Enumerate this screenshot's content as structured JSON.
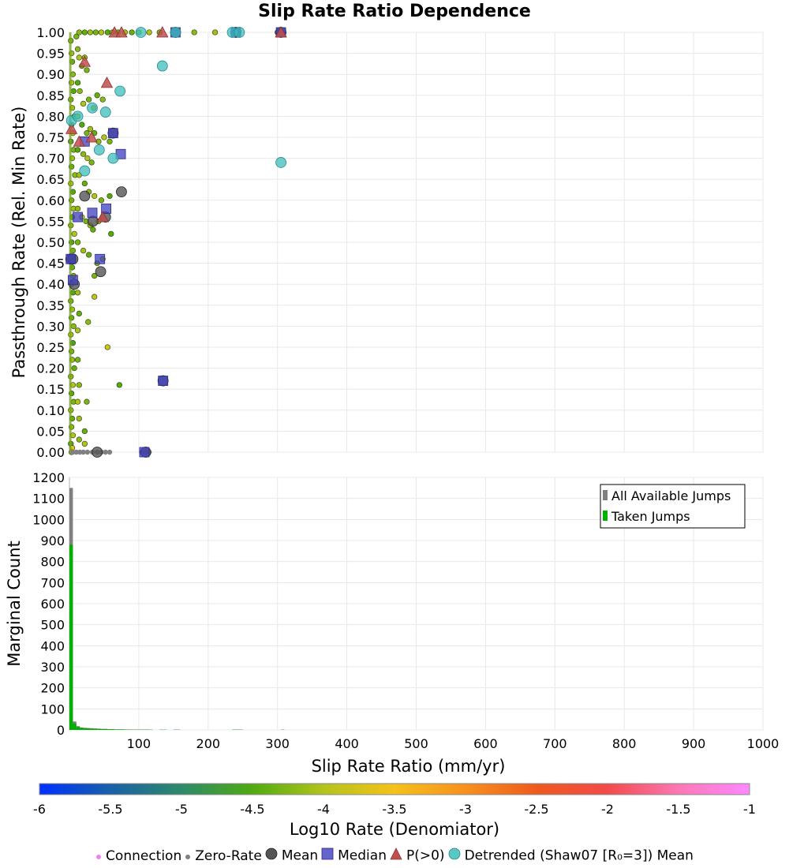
{
  "title": "Slip Rate Ratio Dependence",
  "colors": {
    "zero_rate": "#808080",
    "mean": "#555555",
    "median": "#3d3dbf",
    "pgt0": "#c0504d",
    "detrended": "#3dbdbd",
    "connection": "#ee82ee",
    "hist_all": "#808080",
    "hist_taken": "#00b000",
    "grid": "#e8e8e8",
    "axes_border": "#b0b0b0"
  },
  "chart_data": [
    {
      "type": "scatter",
      "xlabel": "",
      "ylabel": "Passthrough Rate (Rel. Min Rate)",
      "xlim": [
        0,
        1000
      ],
      "ylim": [
        0.0,
        1.0
      ],
      "xticks": [
        100,
        200,
        300,
        400,
        500,
        600,
        700,
        800,
        900,
        1000
      ],
      "yticks": [
        "0.00",
        "0.05",
        "0.10",
        "0.15",
        "0.20",
        "0.25",
        "0.30",
        "0.35",
        "0.40",
        "0.45",
        "0.50",
        "0.55",
        "0.60",
        "0.65",
        "0.70",
        "0.75",
        "0.80",
        "0.85",
        "0.90",
        "0.95",
        "1.00"
      ],
      "connection_points": [
        [
          2,
          0.98,
          -4.3
        ],
        [
          3,
          0.95,
          -4.1
        ],
        [
          4,
          0.93,
          -4.4
        ],
        [
          5,
          0.9,
          -4.2
        ],
        [
          3,
          0.88,
          -4.0
        ],
        [
          6,
          0.86,
          -4.5
        ],
        [
          2,
          0.84,
          -4.3
        ],
        [
          4,
          0.82,
          -4.1
        ],
        [
          7,
          0.8,
          -4.4
        ],
        [
          3,
          0.78,
          -4.2
        ],
        [
          5,
          0.76,
          -4.0
        ],
        [
          2,
          0.74,
          -4.6
        ],
        [
          6,
          0.72,
          -4.3
        ],
        [
          4,
          0.7,
          -4.1
        ],
        [
          3,
          0.68,
          -4.4
        ],
        [
          8,
          0.66,
          -4.2
        ],
        [
          2,
          0.64,
          -4.0
        ],
        [
          5,
          0.62,
          -4.5
        ],
        [
          3,
          0.6,
          -4.3
        ],
        [
          6,
          0.58,
          -4.1
        ],
        [
          4,
          0.56,
          -4.4
        ],
        [
          2,
          0.54,
          -4.2
        ],
        [
          7,
          0.52,
          -4.0
        ],
        [
          3,
          0.5,
          -4.6
        ],
        [
          5,
          0.48,
          -4.3
        ],
        [
          2,
          0.46,
          -4.1
        ],
        [
          4,
          0.44,
          -4.4
        ],
        [
          6,
          0.42,
          -4.2
        ],
        [
          3,
          0.4,
          -4.0
        ],
        [
          5,
          0.38,
          -4.5
        ],
        [
          2,
          0.36,
          -4.3
        ],
        [
          4,
          0.34,
          -4.1
        ],
        [
          3,
          0.32,
          -4.4
        ],
        [
          6,
          0.3,
          -4.2
        ],
        [
          2,
          0.28,
          -4.0
        ],
        [
          5,
          0.26,
          -4.6
        ],
        [
          3,
          0.24,
          -4.3
        ],
        [
          4,
          0.22,
          -4.1
        ],
        [
          7,
          0.2,
          -4.4
        ],
        [
          2,
          0.18,
          -4.2
        ],
        [
          5,
          0.16,
          -4.0
        ],
        [
          3,
          0.14,
          -4.5
        ],
        [
          6,
          0.12,
          -4.3
        ],
        [
          2,
          0.1,
          -4.1
        ],
        [
          4,
          0.08,
          -4.4
        ],
        [
          3,
          0.06,
          -4.2
        ],
        [
          5,
          0.04,
          -4.0
        ],
        [
          2,
          0.02,
          -4.6
        ],
        [
          4,
          0.01,
          -3.6
        ],
        [
          3,
          0.0,
          -4.3
        ],
        [
          12,
          0.96,
          -4.2
        ],
        [
          14,
          0.94,
          -4.0
        ],
        [
          18,
          0.92,
          -4.4
        ],
        [
          22,
          0.94,
          -4.1
        ],
        [
          25,
          0.91,
          -4.3
        ],
        [
          12,
          0.88,
          -4.5
        ],
        [
          15,
          0.86,
          -4.2
        ],
        [
          20,
          0.83,
          -4.0
        ],
        [
          28,
          0.84,
          -4.3
        ],
        [
          35,
          0.82,
          -4.1
        ],
        [
          40,
          0.85,
          -4.4
        ],
        [
          48,
          0.84,
          -4.2
        ],
        [
          12,
          0.8,
          -4.0
        ],
        [
          18,
          0.78,
          -4.5
        ],
        [
          25,
          0.76,
          -4.3
        ],
        [
          30,
          0.77,
          -4.1
        ],
        [
          36,
          0.76,
          -4.4
        ],
        [
          42,
          0.74,
          -4.2
        ],
        [
          50,
          0.75,
          -4.0
        ],
        [
          58,
          0.74,
          -4.3
        ],
        [
          12,
          0.72,
          -4.5
        ],
        [
          20,
          0.71,
          -4.2
        ],
        [
          26,
          0.7,
          -4.0
        ],
        [
          32,
          0.69,
          -4.3
        ],
        [
          14,
          0.66,
          -4.1
        ],
        [
          22,
          0.64,
          -4.4
        ],
        [
          28,
          0.62,
          -4.2
        ],
        [
          36,
          0.61,
          -4.0
        ],
        [
          46,
          0.6,
          -4.3
        ],
        [
          58,
          0.61,
          -4.5
        ],
        [
          12,
          0.58,
          -4.2
        ],
        [
          18,
          0.56,
          -4.0
        ],
        [
          24,
          0.55,
          -4.3
        ],
        [
          30,
          0.54,
          -4.1
        ],
        [
          34,
          0.53,
          -4.4
        ],
        [
          42,
          0.55,
          -4.2
        ],
        [
          48,
          0.56,
          -4.0
        ],
        [
          60,
          0.52,
          -4.5
        ],
        [
          12,
          0.5,
          -4.3
        ],
        [
          20,
          0.48,
          -4.1
        ],
        [
          28,
          0.47,
          -4.4
        ],
        [
          40,
          0.45,
          -4.2
        ],
        [
          48,
          0.46,
          -4.0
        ],
        [
          36,
          0.42,
          -4.3
        ],
        [
          12,
          0.38,
          -4.1
        ],
        [
          36,
          0.37,
          -3.9
        ],
        [
          14,
          0.33,
          -4.4
        ],
        [
          27,
          0.31,
          -4.2
        ],
        [
          12,
          0.29,
          -4.0
        ],
        [
          55,
          0.25,
          -3.8
        ],
        [
          12,
          0.22,
          -4.3
        ],
        [
          72,
          0.16,
          -4.5
        ],
        [
          14,
          0.16,
          -4.2
        ],
        [
          12,
          0.12,
          -4.0
        ],
        [
          25,
          0.12,
          -4.3
        ],
        [
          14,
          0.08,
          -4.1
        ],
        [
          22,
          0.05,
          -4.4
        ],
        [
          14,
          0.03,
          -4.2
        ],
        [
          22,
          0.02,
          -4.0
        ],
        [
          10,
          0.99,
          -4.3
        ],
        [
          14,
          1.0,
          -4.2
        ],
        [
          22,
          1.0,
          -4.4
        ],
        [
          30,
          1.0,
          -4.1
        ],
        [
          38,
          1.0,
          -4.3
        ],
        [
          46,
          1.0,
          -4.0
        ],
        [
          55,
          1.0,
          -4.5
        ],
        [
          62,
          1.0,
          -4.2
        ],
        [
          70,
          1.0,
          -4.3
        ],
        [
          80,
          1.0,
          -4.1
        ],
        [
          90,
          1.0,
          -4.4
        ],
        [
          100,
          1.0,
          -4.2
        ],
        [
          115,
          1.0,
          -4.0
        ],
        [
          130,
          1.0,
          -4.3
        ],
        [
          150,
          1.0,
          -4.5
        ],
        [
          180,
          1.0,
          -4.2
        ],
        [
          210,
          1.0,
          -4.1
        ],
        [
          240,
          1.0,
          -4.3
        ],
        [
          300,
          1.0,
          -4.4
        ]
      ],
      "zero_rate_points": [
        [
          5,
          0.0
        ],
        [
          10,
          0.0
        ],
        [
          15,
          0.0
        ],
        [
          20,
          0.0
        ],
        [
          26,
          0.0
        ],
        [
          33,
          0.0
        ],
        [
          40,
          0.0
        ],
        [
          46,
          0.0
        ],
        [
          52,
          0.0
        ],
        [
          58,
          0.0
        ],
        [
          104,
          0.0
        ],
        [
          110,
          0.0
        ],
        [
          115,
          0.0
        ]
      ],
      "mean_points": [
        [
          2,
          0.46
        ],
        [
          5,
          0.46
        ],
        [
          7,
          0.4
        ],
        [
          22,
          0.61
        ],
        [
          34,
          0.55
        ],
        [
          40,
          0.0
        ],
        [
          45,
          0.43
        ],
        [
          52,
          0.56
        ],
        [
          75,
          0.62
        ],
        [
          63,
          0.76
        ],
        [
          135,
          0.17
        ],
        [
          110,
          0.0
        ],
        [
          153,
          1.0
        ],
        [
          240,
          1.0
        ],
        [
          305,
          1.0
        ]
      ],
      "median_points": [
        [
          2,
          0.46
        ],
        [
          5,
          0.41
        ],
        [
          12,
          0.56
        ],
        [
          22,
          0.74
        ],
        [
          33,
          0.57
        ],
        [
          44,
          0.46
        ],
        [
          53,
          0.58
        ],
        [
          63,
          0.76
        ],
        [
          74,
          0.71
        ],
        [
          135,
          0.17
        ],
        [
          108,
          0.0
        ],
        [
          153,
          1.0
        ],
        [
          240,
          1.0
        ],
        [
          305,
          1.0
        ]
      ],
      "pgt0_points": [
        [
          3,
          0.77
        ],
        [
          14,
          0.74
        ],
        [
          22,
          0.93
        ],
        [
          32,
          0.75
        ],
        [
          48,
          0.56
        ],
        [
          54,
          0.88
        ],
        [
          65,
          1.0
        ],
        [
          75,
          1.0
        ],
        [
          134,
          1.0
        ],
        [
          305,
          1.0
        ]
      ],
      "detrended_points": [
        [
          3,
          0.79
        ],
        [
          12,
          0.8
        ],
        [
          22,
          0.67
        ],
        [
          33,
          0.82
        ],
        [
          43,
          0.72
        ],
        [
          52,
          0.81
        ],
        [
          63,
          0.7
        ],
        [
          73,
          0.86
        ],
        [
          103,
          1.0
        ],
        [
          134,
          0.92
        ],
        [
          153,
          1.0
        ],
        [
          235,
          1.0
        ],
        [
          245,
          1.0
        ],
        [
          305,
          0.69
        ]
      ]
    },
    {
      "type": "bar",
      "xlabel": "Slip Rate Ratio (mm/yr)",
      "ylabel": "Marginal Count",
      "xlim": [
        0,
        1000
      ],
      "ylim": [
        0,
        1200
      ],
      "xticks": [
        "100",
        "200",
        "300",
        "400",
        "500",
        "600",
        "700",
        "800",
        "900",
        "1000"
      ],
      "yticks": [
        "0",
        "100",
        "200",
        "300",
        "400",
        "500",
        "600",
        "700",
        "800",
        "900",
        "1000",
        "1100",
        "1200"
      ],
      "bin_width": 5,
      "bins_x": [
        0,
        5,
        10,
        15,
        20,
        25,
        30,
        35,
        40,
        45,
        50,
        55,
        60,
        65,
        70,
        75,
        80,
        85,
        90,
        95,
        100,
        105,
        110,
        115,
        130,
        135,
        150,
        155,
        235,
        240,
        245,
        305
      ],
      "series": [
        {
          "name": "All Available Jumps",
          "values": [
            1150,
            40,
            18,
            12,
            10,
            9,
            8,
            7,
            6,
            5,
            5,
            4,
            4,
            3,
            3,
            3,
            2,
            2,
            2,
            2,
            2,
            2,
            2,
            1,
            1,
            1,
            1,
            1,
            2,
            2,
            1,
            1
          ]
        },
        {
          "name": "Taken Jumps",
          "values": [
            880,
            30,
            14,
            9,
            8,
            7,
            6,
            5,
            5,
            4,
            4,
            3,
            3,
            2,
            2,
            2,
            2,
            1,
            1,
            1,
            1,
            1,
            1,
            1,
            1,
            1,
            1,
            1,
            1,
            1,
            1,
            1
          ]
        }
      ],
      "legend_position": "top-right"
    },
    {
      "type": "colorbar",
      "xlabel": "Log10 Rate (Denomiator)",
      "range": [
        -6,
        -1
      ],
      "ticks": [
        "-6",
        "-5.5",
        "-5",
        "-4.5",
        "-4",
        "-3.5",
        "-3",
        "-2.5",
        "-2",
        "-1.5",
        "-1"
      ],
      "colors": [
        "#0030ff",
        "#1a60a8",
        "#2e8a6a",
        "#4faa10",
        "#b3c41c",
        "#f5c21a",
        "#f7901e",
        "#ee5a1e",
        "#f24a4a",
        "#fb78b4",
        "#ff88ff"
      ]
    }
  ],
  "legend": [
    {
      "label": "Connection",
      "symbol": "connection"
    },
    {
      "label": "Zero-Rate",
      "symbol": "zero_rate"
    },
    {
      "label": "Mean",
      "symbol": "mean"
    },
    {
      "label": "Median",
      "symbol": "median"
    },
    {
      "label": "P(>0)",
      "symbol": "pgt0"
    },
    {
      "label": "Detrended (Shaw07 [R₀=3]) Mean",
      "symbol": "detrended"
    }
  ]
}
